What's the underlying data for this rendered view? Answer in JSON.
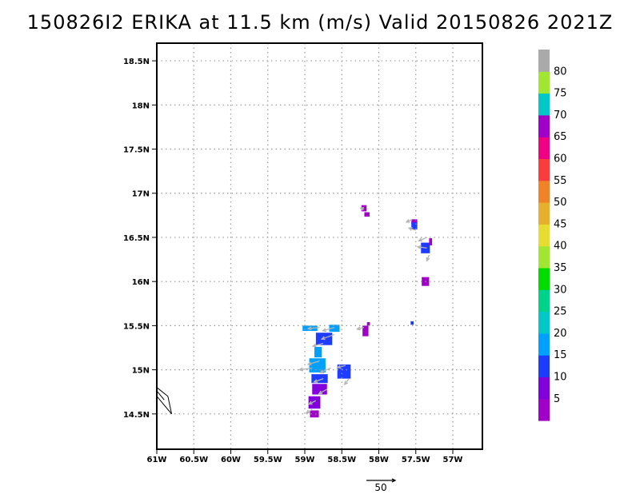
{
  "title": "150826I2 ERIKA at 11.5 km (m/s) Valid 20150826 2021Z",
  "chart_data": {
    "type": "heatmap",
    "title": "150826I2 ERIKA at 11.5 km (m/s) Valid 20150826 2021Z",
    "xlabel": "",
    "ylabel": "",
    "xlim": [
      -61.0,
      -56.6
    ],
    "ylim": [
      14.1,
      18.7
    ],
    "x_ticks": [
      {
        "value": -61.0,
        "label": "61W"
      },
      {
        "value": -60.5,
        "label": "60.5W"
      },
      {
        "value": -60.0,
        "label": "60W"
      },
      {
        "value": -59.5,
        "label": "59.5W"
      },
      {
        "value": -59.0,
        "label": "59W"
      },
      {
        "value": -58.5,
        "label": "58.5W"
      },
      {
        "value": -58.0,
        "label": "58W"
      },
      {
        "value": -57.5,
        "label": "57.5W"
      },
      {
        "value": -57.0,
        "label": "57W"
      }
    ],
    "y_ticks": [
      {
        "value": 14.5,
        "label": "14.5N"
      },
      {
        "value": 15.0,
        "label": "15N"
      },
      {
        "value": 15.5,
        "label": "15.5N"
      },
      {
        "value": 16.0,
        "label": "16N"
      },
      {
        "value": 16.5,
        "label": "16.5N"
      },
      {
        "value": 17.0,
        "label": "17N"
      },
      {
        "value": 17.5,
        "label": "17.5N"
      },
      {
        "value": 18.0,
        "label": "18N"
      },
      {
        "value": 18.5,
        "label": "18.5N"
      }
    ],
    "grid": true,
    "colorbar": {
      "labels": [
        "5",
        "10",
        "15",
        "20",
        "25",
        "30",
        "35",
        "40",
        "45",
        "50",
        "55",
        "60",
        "65",
        "70",
        "75",
        "80"
      ],
      "colors": [
        "#a000c8",
        "#8200dc",
        "#1e3cff",
        "#00a0ff",
        "#00c8c8",
        "#00d28c",
        "#00dc00",
        "#a0e632",
        "#e6dc32",
        "#e6af2d",
        "#f08228",
        "#fa3c3c",
        "#f00082",
        "#a000c8",
        "#00c8c8",
        "#a0e632",
        "#aaaaaa"
      ]
    },
    "cells": [
      {
        "lon": -58.2,
        "lat": 16.83,
        "w": 0.07,
        "h": 0.07,
        "color": "#a000c8"
      },
      {
        "lon": -58.16,
        "lat": 16.76,
        "w": 0.07,
        "h": 0.05,
        "color": "#a000c8"
      },
      {
        "lon": -57.52,
        "lat": 16.68,
        "w": 0.08,
        "h": 0.05,
        "color": "#a000c8"
      },
      {
        "lon": -57.52,
        "lat": 16.63,
        "w": 0.08,
        "h": 0.08,
        "color": "#1e3cff"
      },
      {
        "lon": -57.37,
        "lat": 16.38,
        "w": 0.12,
        "h": 0.12,
        "color": "#1e3cff"
      },
      {
        "lon": -57.3,
        "lat": 16.45,
        "w": 0.04,
        "h": 0.08,
        "color": "#a000c8"
      },
      {
        "lon": -57.37,
        "lat": 16.0,
        "w": 0.1,
        "h": 0.1,
        "color": "#a000c8"
      },
      {
        "lon": -57.55,
        "lat": 15.53,
        "w": 0.04,
        "h": 0.04,
        "color": "#1e3cff"
      },
      {
        "lon": -58.18,
        "lat": 15.44,
        "w": 0.08,
        "h": 0.12,
        "color": "#a000c8"
      },
      {
        "lon": -58.14,
        "lat": 15.52,
        "w": 0.04,
        "h": 0.04,
        "color": "#a000c8"
      },
      {
        "lon": -58.93,
        "lat": 15.47,
        "w": 0.2,
        "h": 0.06,
        "color": "#00a0ff"
      },
      {
        "lon": -58.6,
        "lat": 15.47,
        "w": 0.14,
        "h": 0.08,
        "color": "#00a0ff"
      },
      {
        "lon": -58.74,
        "lat": 15.35,
        "w": 0.22,
        "h": 0.14,
        "color": "#1e3cff"
      },
      {
        "lon": -58.82,
        "lat": 15.2,
        "w": 0.1,
        "h": 0.12,
        "color": "#00a0ff"
      },
      {
        "lon": -58.83,
        "lat": 15.05,
        "w": 0.22,
        "h": 0.16,
        "color": "#00a0ff"
      },
      {
        "lon": -58.47,
        "lat": 14.98,
        "w": 0.18,
        "h": 0.16,
        "color": "#1e3cff"
      },
      {
        "lon": -58.8,
        "lat": 14.9,
        "w": 0.22,
        "h": 0.1,
        "color": "#1e3cff"
      },
      {
        "lon": -58.8,
        "lat": 14.78,
        "w": 0.2,
        "h": 0.12,
        "color": "#8200dc"
      },
      {
        "lon": -58.87,
        "lat": 14.63,
        "w": 0.16,
        "h": 0.14,
        "color": "#8200dc"
      },
      {
        "lon": -58.87,
        "lat": 14.5,
        "w": 0.12,
        "h": 0.08,
        "color": "#a000c8"
      }
    ],
    "vectors": [
      {
        "lon": -58.8,
        "lat": 15.48,
        "u": -20,
        "v": -2
      },
      {
        "lon": -58.6,
        "lat": 15.48,
        "u": -20,
        "v": -6
      },
      {
        "lon": -58.6,
        "lat": 15.4,
        "u": -22,
        "v": -8
      },
      {
        "lon": -58.75,
        "lat": 15.3,
        "u": -18,
        "v": -5
      },
      {
        "lon": -58.2,
        "lat": 15.48,
        "u": -12,
        "v": -3
      },
      {
        "lon": -58.8,
        "lat": 15.1,
        "u": -20,
        "v": -6
      },
      {
        "lon": -58.9,
        "lat": 15.02,
        "u": -22,
        "v": -3
      },
      {
        "lon": -58.65,
        "lat": 15.02,
        "u": -18,
        "v": -8
      },
      {
        "lon": -58.45,
        "lat": 15.05,
        "u": -14,
        "v": -4
      },
      {
        "lon": -58.4,
        "lat": 14.9,
        "u": -8,
        "v": -10
      },
      {
        "lon": -58.75,
        "lat": 14.9,
        "u": -16,
        "v": -6
      },
      {
        "lon": -58.7,
        "lat": 14.78,
        "u": -14,
        "v": -8
      },
      {
        "lon": -58.85,
        "lat": 14.65,
        "u": -12,
        "v": -6
      },
      {
        "lon": -58.9,
        "lat": 14.55,
        "u": -10,
        "v": -6
      },
      {
        "lon": -58.2,
        "lat": 16.82,
        "u": -6,
        "v": 2
      },
      {
        "lon": -57.55,
        "lat": 16.7,
        "u": -10,
        "v": -4
      },
      {
        "lon": -57.5,
        "lat": 16.58,
        "u": -12,
        "v": 4
      },
      {
        "lon": -57.35,
        "lat": 16.5,
        "u": -14,
        "v": -6
      },
      {
        "lon": -57.35,
        "lat": 16.38,
        "u": -16,
        "v": 2
      },
      {
        "lon": -57.32,
        "lat": 16.3,
        "u": -4,
        "v": -10
      }
    ],
    "reference_vector": {
      "label": "50",
      "value": 50
    },
    "coastline": [
      [
        [
          -61.0,
          14.8
        ],
        [
          -60.85,
          14.7
        ],
        [
          -60.8,
          14.5
        ],
        [
          -60.9,
          14.6
        ],
        [
          -61.0,
          14.7
        ]
      ],
      [
        [
          -61.0,
          14.76
        ],
        [
          -60.9,
          14.66
        ]
      ]
    ]
  }
}
